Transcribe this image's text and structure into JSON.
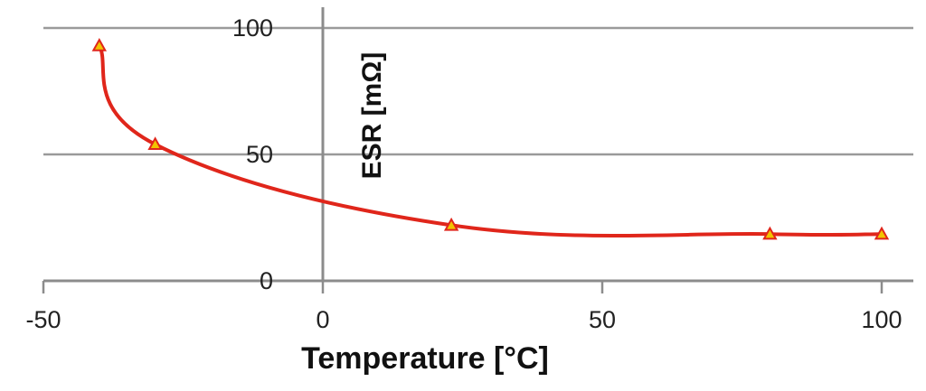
{
  "chart_data": {
    "type": "line",
    "title": "",
    "xlabel": "Temperature [°C]",
    "ylabel": "ESR  [mΩ]",
    "xlim": [
      -50,
      100
    ],
    "ylim": [
      0,
      100
    ],
    "x_ticks": [
      "-50",
      "0",
      "50",
      "100"
    ],
    "y_ticks": [
      "0",
      "50",
      "100"
    ],
    "grid": "horizontal",
    "legend": "none",
    "series": [
      {
        "name": "",
        "color": "#e0261b",
        "marker_color": "#f2c400",
        "marker": "triangle",
        "points": [
          {
            "x": -40,
            "y": 93
          },
          {
            "x": -30,
            "y": 54
          },
          {
            "x": 23,
            "y": 22
          },
          {
            "x": 80,
            "y": 18.5
          },
          {
            "x": 100,
            "y": 18.5
          }
        ]
      }
    ]
  }
}
